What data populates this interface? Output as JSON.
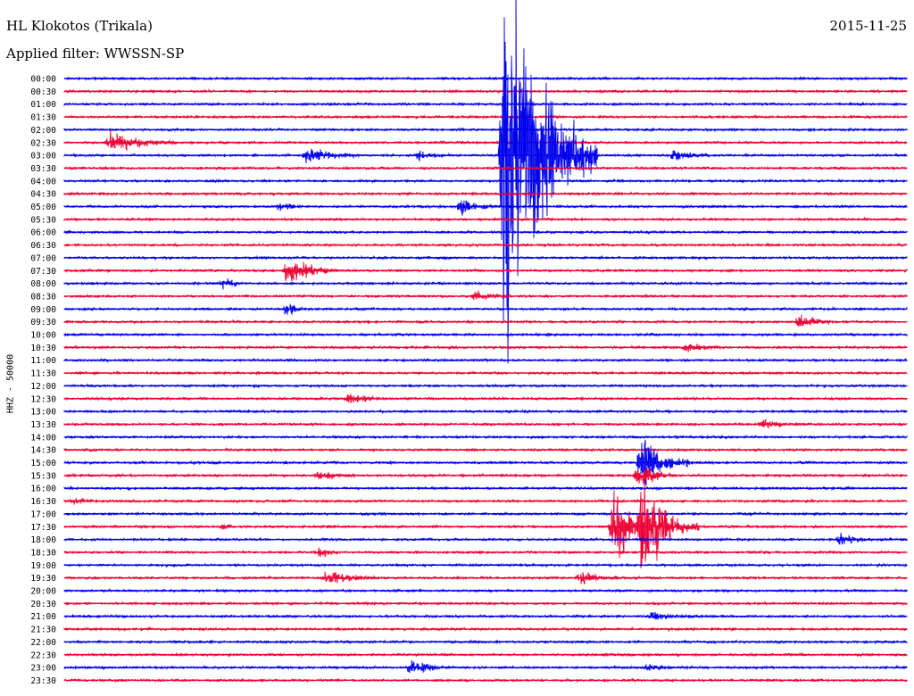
{
  "header": {
    "station": "HL Klokotos (Trikala)",
    "filter": "Applied filter: WWSSN-SP",
    "date": "2015-11-25"
  },
  "channel_label": "HHZ - 50000",
  "colors": {
    "blue": "#0000ee",
    "red": "#ee0033",
    "text": "#000000"
  },
  "chart_data": {
    "type": "line",
    "title": "HL Klokotos (Trikala)",
    "subtitle": "Applied filter: WWSSN-SP",
    "ylabel": "HHZ - 50000",
    "row_labels": [
      "00:00",
      "00:30",
      "01:00",
      "01:30",
      "02:00",
      "02:30",
      "03:00",
      "03:30",
      "04:00",
      "04:30",
      "05:00",
      "05:30",
      "06:00",
      "06:30",
      "07:00",
      "07:30",
      "08:00",
      "08:30",
      "09:00",
      "09:30",
      "10:00",
      "10:30",
      "11:00",
      "11:30",
      "12:00",
      "12:30",
      "13:00",
      "13:30",
      "14:00",
      "14:30",
      "15:00",
      "15:30",
      "16:00",
      "16:30",
      "17:00",
      "17:30",
      "18:00",
      "18:30",
      "19:00",
      "19:30",
      "20:00",
      "20:30",
      "21:00",
      "21:30",
      "22:00",
      "22:30",
      "23:00",
      "23:30"
    ],
    "row_minutes": 30,
    "row_colors": [
      "blue",
      "red"
    ],
    "noise_levels": [
      1,
      1,
      1,
      1,
      1,
      1,
      1,
      1,
      1,
      1,
      1,
      1,
      1,
      1,
      1,
      1,
      1,
      1,
      1,
      1,
      1,
      1,
      1,
      1,
      1,
      1,
      1,
      1,
      1,
      1,
      1,
      1,
      1,
      1,
      1,
      1,
      1,
      1,
      1,
      1,
      1,
      1,
      1,
      1,
      1,
      1,
      1,
      1
    ],
    "events": [
      {
        "row": 5,
        "minute": 1.5,
        "amp": 9,
        "dur": 2.5
      },
      {
        "row": 6,
        "minute": 8.5,
        "amp": 7,
        "dur": 2.0
      },
      {
        "row": 6,
        "minute": 12.5,
        "amp": 4,
        "dur": 1.0
      },
      {
        "row": 6,
        "minute": 15.5,
        "amp": 170,
        "dur": 3.5
      },
      {
        "row": 6,
        "minute": 21.5,
        "amp": 5,
        "dur": 1.5
      },
      {
        "row": 10,
        "minute": 14.0,
        "amp": 6,
        "dur": 1.5
      },
      {
        "row": 10,
        "minute": 7.5,
        "amp": 3,
        "dur": 1.0
      },
      {
        "row": 15,
        "minute": 7.8,
        "amp": 14,
        "dur": 2.0
      },
      {
        "row": 16,
        "minute": 5.5,
        "amp": 4,
        "dur": 1.0
      },
      {
        "row": 17,
        "minute": 14.5,
        "amp": 4,
        "dur": 1.5
      },
      {
        "row": 18,
        "minute": 7.8,
        "amp": 4,
        "dur": 1.0
      },
      {
        "row": 19,
        "minute": 26.0,
        "amp": 6,
        "dur": 1.5
      },
      {
        "row": 21,
        "minute": 22.0,
        "amp": 4,
        "dur": 1.5
      },
      {
        "row": 25,
        "minute": 10.0,
        "amp": 4,
        "dur": 1.5
      },
      {
        "row": 27,
        "minute": 24.7,
        "amp": 4,
        "dur": 1.5
      },
      {
        "row": 30,
        "minute": 20.4,
        "amp": 22,
        "dur": 2.0
      },
      {
        "row": 31,
        "minute": 8.9,
        "amp": 5,
        "dur": 1.5
      },
      {
        "row": 31,
        "minute": 20.3,
        "amp": 10,
        "dur": 1.5
      },
      {
        "row": 33,
        "minute": 0.2,
        "amp": 3,
        "dur": 1.0
      },
      {
        "row": 35,
        "minute": 19.4,
        "amp": 30,
        "dur": 1.8
      },
      {
        "row": 35,
        "minute": 20.4,
        "amp": 36,
        "dur": 2.2
      },
      {
        "row": 35,
        "minute": 5.5,
        "amp": 3,
        "dur": 0.5
      },
      {
        "row": 36,
        "minute": 27.5,
        "amp": 4,
        "dur": 1.5
      },
      {
        "row": 37,
        "minute": 8.9,
        "amp": 4,
        "dur": 1.0
      },
      {
        "row": 39,
        "minute": 9.2,
        "amp": 6,
        "dur": 2.0
      },
      {
        "row": 39,
        "minute": 18.2,
        "amp": 5,
        "dur": 1.5
      },
      {
        "row": 42,
        "minute": 20.8,
        "amp": 3,
        "dur": 1.5
      },
      {
        "row": 46,
        "minute": 12.2,
        "amp": 6,
        "dur": 1.5
      },
      {
        "row": 46,
        "minute": 20.6,
        "amp": 3,
        "dur": 1.0
      }
    ]
  }
}
